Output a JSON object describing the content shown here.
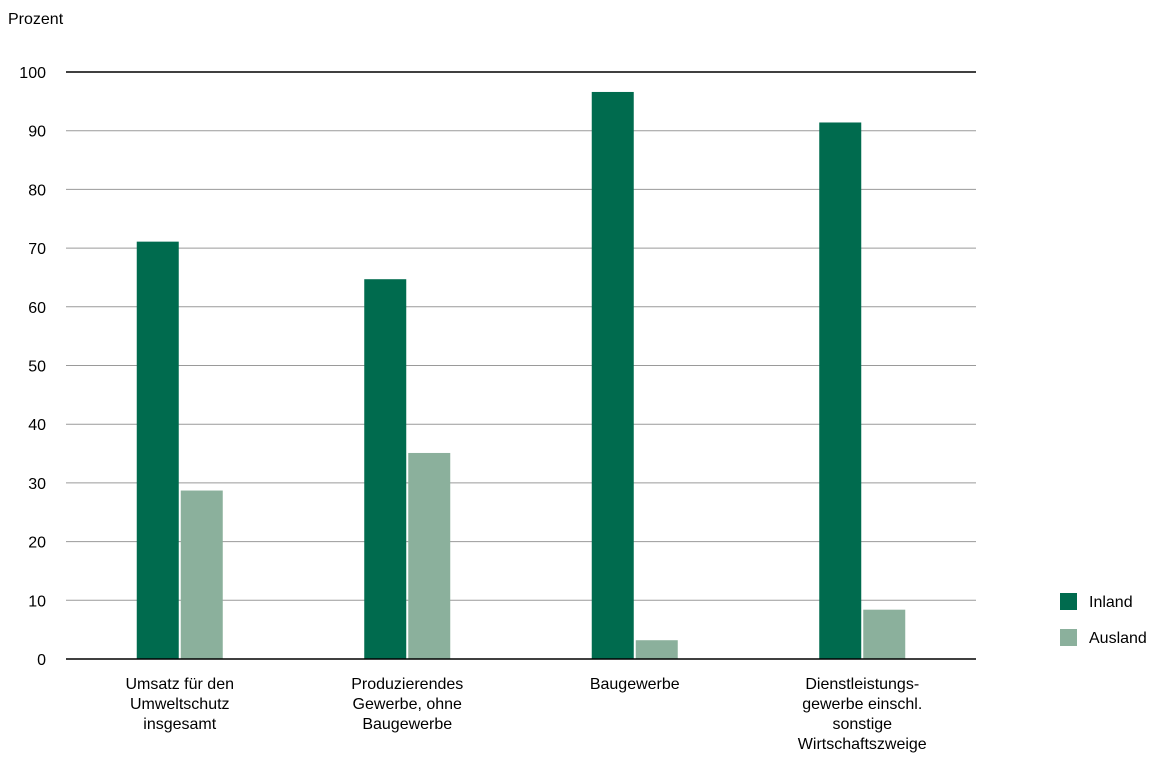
{
  "chart_data": {
    "type": "bar",
    "unit_label": "Prozent",
    "title": "",
    "xlabel": "",
    "ylabel": "",
    "ylim": [
      0,
      100
    ],
    "yticks": [
      0,
      10,
      20,
      30,
      40,
      50,
      60,
      70,
      80,
      90,
      100
    ],
    "grid": true,
    "legend_position": "right",
    "categories": [
      [
        "Umsatz für den",
        "Umweltschutz",
        "insgesamt"
      ],
      [
        "Produzierendes",
        "Gewerbe, ohne",
        "Baugewerbe"
      ],
      [
        "Baugewerbe"
      ],
      [
        "Dienstleistungs-",
        "gewerbe einschl.",
        "sonstige",
        "Wirtschaftszweige"
      ]
    ],
    "series": [
      {
        "name": "Inland",
        "color": "#006B4E",
        "values": [
          71.1,
          64.7,
          96.6,
          91.4
        ]
      },
      {
        "name": "Ausland",
        "color": "#8BB09C",
        "values": [
          28.7,
          35.1,
          3.2,
          8.4
        ]
      }
    ]
  }
}
